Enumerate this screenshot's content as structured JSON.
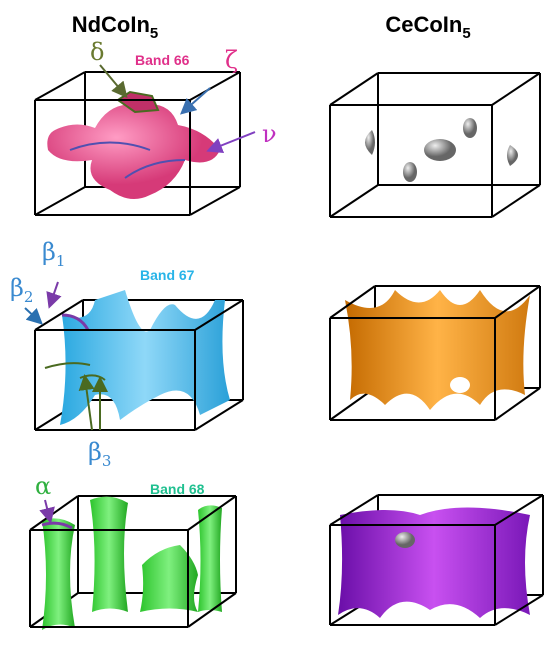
{
  "columns": [
    {
      "text": "NdCoIn",
      "sub": "5"
    },
    {
      "text": "CeCoIn",
      "sub": "5"
    }
  ],
  "bands": [
    "Band 66",
    "Band 67",
    "Band 68"
  ],
  "labels": {
    "delta": "δ",
    "zeta": "ζ",
    "nu": "ν",
    "beta1": {
      "symbol": "β",
      "sub": "1"
    },
    "beta2": {
      "symbol": "β",
      "sub": "2"
    },
    "beta3": {
      "symbol": "β",
      "sub": "3"
    },
    "alpha": "α"
  }
}
